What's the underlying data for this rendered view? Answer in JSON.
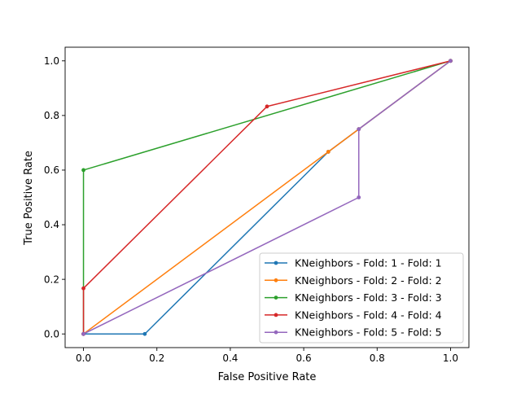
{
  "chart_data": {
    "type": "line",
    "title": "",
    "xlabel": "False Positive Rate",
    "ylabel": "True Positive Rate",
    "xlim": [
      -0.05,
      1.05
    ],
    "ylim": [
      -0.05,
      1.05
    ],
    "xticks": [
      0.0,
      0.2,
      0.4,
      0.6,
      0.8,
      1.0
    ],
    "yticks": [
      0.0,
      0.2,
      0.4,
      0.6,
      0.8,
      1.0
    ],
    "xtick_labels": [
      "0.0",
      "0.2",
      "0.4",
      "0.6",
      "0.8",
      "1.0"
    ],
    "ytick_labels": [
      "0.0",
      "0.2",
      "0.4",
      "0.6",
      "0.8",
      "1.0"
    ],
    "grid": false,
    "legend_position": "lower-right",
    "series": [
      {
        "name": "KNeighbors - Fold: 1 - Fold: 1",
        "color": "#1f77b4",
        "x": [
          0.0,
          0.0,
          0.167,
          0.667,
          0.75,
          1.0
        ],
        "y": [
          0.0,
          0.0,
          0.0,
          0.667,
          0.75,
          1.0
        ]
      },
      {
        "name": "KNeighbors - Fold: 2 - Fold: 2",
        "color": "#ff7f0e",
        "x": [
          0.0,
          0.0,
          0.667,
          0.75,
          1.0
        ],
        "y": [
          0.0,
          0.0,
          0.667,
          0.75,
          1.0
        ]
      },
      {
        "name": "KNeighbors - Fold: 3 - Fold: 3",
        "color": "#2ca02c",
        "x": [
          0.0,
          0.0,
          0.0,
          1.0
        ],
        "y": [
          0.0,
          0.0,
          0.6,
          1.0
        ]
      },
      {
        "name": "KNeighbors - Fold: 4 - Fold: 4",
        "color": "#d62728",
        "x": [
          0.0,
          0.0,
          0.0,
          0.5,
          1.0
        ],
        "y": [
          0.0,
          0.0,
          0.167,
          0.833,
          1.0
        ]
      },
      {
        "name": "KNeighbors - Fold: 5 - Fold: 5",
        "color": "#9467bd",
        "x": [
          0.0,
          0.0,
          0.75,
          0.75,
          1.0
        ],
        "y": [
          0.0,
          0.0,
          0.5,
          0.75,
          1.0
        ]
      }
    ]
  }
}
